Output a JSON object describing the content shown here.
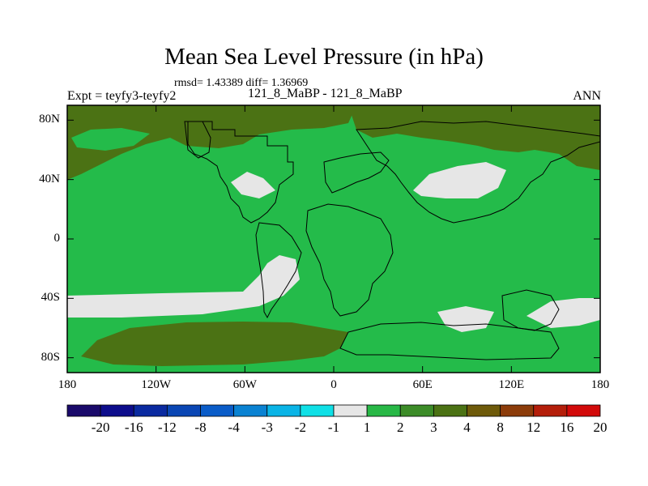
{
  "title": "Mean Sea Level Pressure (in hPa)",
  "stats": "rmsd= 1.43389 diff= 1.36969",
  "experiment": "Expt = teyfy3-teyfy2",
  "comparison": "121_8_MaBP - 121_8_MaBP",
  "season": "ANN",
  "lat_ticks": [
    "80N",
    "40N",
    "0",
    "40S",
    "80S"
  ],
  "lat_values": [
    80,
    40,
    0,
    -40,
    -80
  ],
  "lon_ticks": [
    "180",
    "120W",
    "60W",
    "0",
    "60E",
    "120E",
    "180"
  ],
  "lon_values": [
    -180,
    -120,
    -60,
    0,
    60,
    120,
    180
  ],
  "colorbar": {
    "labels": [
      "-20",
      "-16",
      "-12",
      "-8",
      "-4",
      "-3",
      "-2",
      "-1",
      "1",
      "2",
      "3",
      "4",
      "8",
      "12",
      "16",
      "20"
    ],
    "colors": [
      "#1a0a6b",
      "#0d0d8c",
      "#0a2aa0",
      "#0a46b4",
      "#0a5cc8",
      "#0a82d2",
      "#0ab4e6",
      "#10e0e6",
      "#e6e6e6",
      "#28b846",
      "#3c8c28",
      "#4b7214",
      "#6e5a0a",
      "#8c3c0a",
      "#b41e0a",
      "#d20a0a"
    ]
  },
  "map": {
    "background_category": "1 to 2",
    "background_color": "#24bb4a",
    "regions": [
      {
        "name": "arctic-3-4-band-west",
        "category": "3 to 4",
        "color": "#4b7214"
      },
      {
        "name": "arctic-3-4-band-east",
        "category": "3 to 4",
        "color": "#4b7214"
      },
      {
        "name": "southern-ocean-3-4-band-west",
        "category": "3 to 4",
        "color": "#4b7214"
      },
      {
        "name": "southern-ocean-minus1-1-band",
        "category": "-1 to 1",
        "color": "#e6e6e6"
      },
      {
        "name": "asia-minus1-1-patch",
        "category": "-1 to 1",
        "color": "#e6e6e6"
      },
      {
        "name": "atlantic-minus1-1-patch",
        "category": "-1 to 1",
        "color": "#e6e6e6"
      }
    ]
  }
}
